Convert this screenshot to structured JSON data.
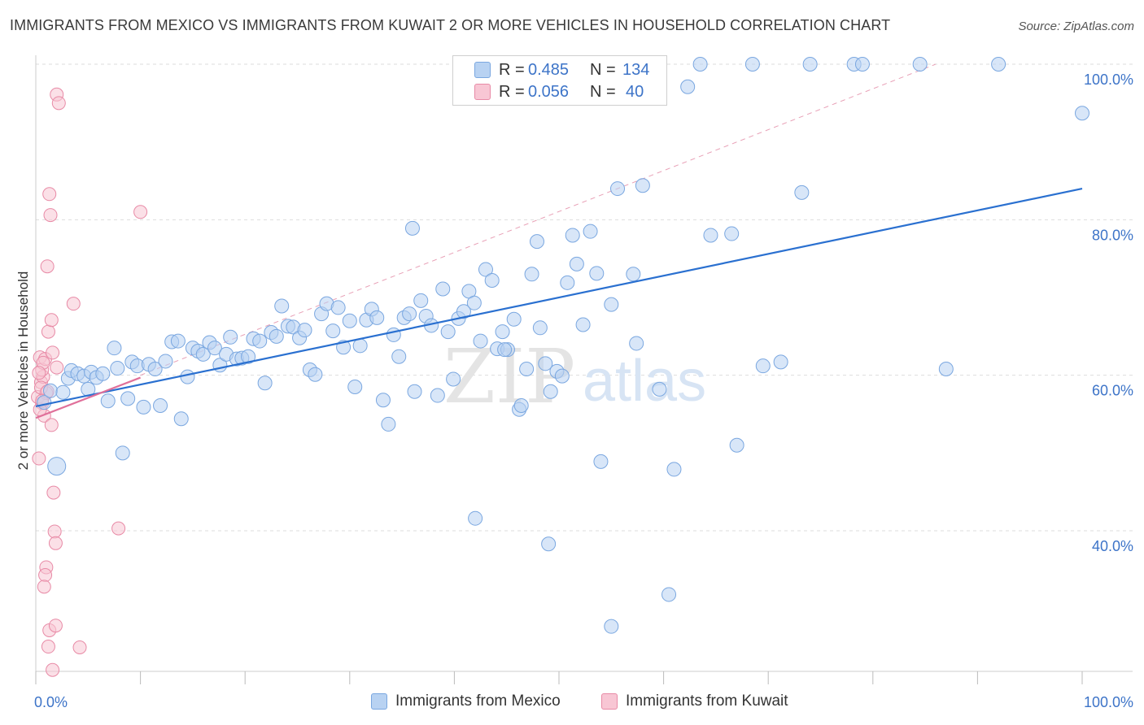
{
  "title": "IMMIGRANTS FROM MEXICO VS IMMIGRANTS FROM KUWAIT 2 OR MORE VEHICLES IN HOUSEHOLD CORRELATION CHART",
  "source": "Source: ZipAtlas.com",
  "watermark": {
    "zip": "ZIP",
    "atlas": "atlas"
  },
  "legend": {
    "r_label": "R =",
    "n_label": "N =",
    "mexico": {
      "r": "0.485",
      "n": "134"
    },
    "kuwait": {
      "r": "0.056",
      "n": "40"
    }
  },
  "colors": {
    "mexico_fill": "#b8d2f2",
    "mexico_stroke": "#7aa7e0",
    "mexico_line": "#2a70d0",
    "kuwait_fill": "#f8c6d4",
    "kuwait_stroke": "#e88aa6",
    "kuwait_line": "#e0709a",
    "axis_value": "#3d74c8",
    "grid": "#dddddd"
  },
  "chart_data": {
    "type": "scatter",
    "title": "IMMIGRANTS FROM MEXICO VS IMMIGRANTS FROM KUWAIT 2 OR MORE VEHICLES IN HOUSEHOLD CORRELATION CHART",
    "xlabel": "",
    "ylabel": "2 or more Vehicles in Household",
    "xlim": [
      0,
      100
    ],
    "ylim": [
      20,
      102
    ],
    "x_tick_labels": [
      "0.0%",
      "100.0%"
    ],
    "y_ticks": [
      40,
      60,
      80,
      100
    ],
    "y_tick_labels": [
      "40.0%",
      "60.0%",
      "80.0%",
      "100.0%"
    ],
    "grid": true,
    "legend_position": "bottom",
    "series": [
      {
        "name": "Immigrants from Mexico",
        "points": [
          [
            0.8,
            56.5
          ],
          [
            1.4,
            58.0
          ],
          [
            2.0,
            48.3
          ],
          [
            2.6,
            57.8
          ],
          [
            3.1,
            59.6
          ],
          [
            3.4,
            60.6
          ],
          [
            4.0,
            60.2
          ],
          [
            4.6,
            59.9
          ],
          [
            5.0,
            58.2
          ],
          [
            5.3,
            60.4
          ],
          [
            5.8,
            59.7
          ],
          [
            6.4,
            60.2
          ],
          [
            6.9,
            56.7
          ],
          [
            7.5,
            63.5
          ],
          [
            7.8,
            60.9
          ],
          [
            8.3,
            50.0
          ],
          [
            8.8,
            57.0
          ],
          [
            9.2,
            61.7
          ],
          [
            9.7,
            61.2
          ],
          [
            10.3,
            55.9
          ],
          [
            10.8,
            61.4
          ],
          [
            11.4,
            60.8
          ],
          [
            11.9,
            56.1
          ],
          [
            12.4,
            61.8
          ],
          [
            13.0,
            64.3
          ],
          [
            13.6,
            64.4
          ],
          [
            13.9,
            54.4
          ],
          [
            14.5,
            59.8
          ],
          [
            15.0,
            63.5
          ],
          [
            15.5,
            63.1
          ],
          [
            16.0,
            62.7
          ],
          [
            16.6,
            64.2
          ],
          [
            17.1,
            63.5
          ],
          [
            17.6,
            61.3
          ],
          [
            18.2,
            62.7
          ],
          [
            18.6,
            64.9
          ],
          [
            19.2,
            62.1
          ],
          [
            19.7,
            62.2
          ],
          [
            20.3,
            62.4
          ],
          [
            20.8,
            64.7
          ],
          [
            21.4,
            64.4
          ],
          [
            21.9,
            59.0
          ],
          [
            22.5,
            65.5
          ],
          [
            23.0,
            65.0
          ],
          [
            23.5,
            68.9
          ],
          [
            24.1,
            66.3
          ],
          [
            24.6,
            66.2
          ],
          [
            25.2,
            64.8
          ],
          [
            25.7,
            65.8
          ],
          [
            26.2,
            60.7
          ],
          [
            26.7,
            60.1
          ],
          [
            27.3,
            67.9
          ],
          [
            27.8,
            69.2
          ],
          [
            28.4,
            65.7
          ],
          [
            28.9,
            68.7
          ],
          [
            29.4,
            63.6
          ],
          [
            30.0,
            67.0
          ],
          [
            30.5,
            58.5
          ],
          [
            31.0,
            63.8
          ],
          [
            31.6,
            67.1
          ],
          [
            32.1,
            68.5
          ],
          [
            32.6,
            67.4
          ],
          [
            33.2,
            56.8
          ],
          [
            33.7,
            53.7
          ],
          [
            34.2,
            65.2
          ],
          [
            34.7,
            62.4
          ],
          [
            35.2,
            67.4
          ],
          [
            35.7,
            67.9
          ],
          [
            36.2,
            57.9
          ],
          [
            36.8,
            69.6
          ],
          [
            36.0,
            78.9
          ],
          [
            37.3,
            67.6
          ],
          [
            37.8,
            66.4
          ],
          [
            38.4,
            57.4
          ],
          [
            38.9,
            71.1
          ],
          [
            39.4,
            65.6
          ],
          [
            39.9,
            59.5
          ],
          [
            40.4,
            67.3
          ],
          [
            40.9,
            68.2
          ],
          [
            41.4,
            70.8
          ],
          [
            41.9,
            69.3
          ],
          [
            42.5,
            64.4
          ],
          [
            43.0,
            73.6
          ],
          [
            43.6,
            72.2
          ],
          [
            44.1,
            63.4
          ],
          [
            44.6,
            65.6
          ],
          [
            45.1,
            63.3
          ],
          [
            45.7,
            67.2
          ],
          [
            46.2,
            55.6
          ],
          [
            46.4,
            56.1
          ],
          [
            46.9,
            60.8
          ],
          [
            47.4,
            73.0
          ],
          [
            47.9,
            77.2
          ],
          [
            48.2,
            66.1
          ],
          [
            48.7,
            61.5
          ],
          [
            49.2,
            57.9
          ],
          [
            49.8,
            60.5
          ],
          [
            50.3,
            59.9
          ],
          [
            50.8,
            71.9
          ],
          [
            51.3,
            78.0
          ],
          [
            51.7,
            74.3
          ],
          [
            52.3,
            66.5
          ],
          [
            53.0,
            78.5
          ],
          [
            53.6,
            73.1
          ],
          [
            54.0,
            48.9
          ],
          [
            55.0,
            69.1
          ],
          [
            55.6,
            84.0
          ],
          [
            57.1,
            73.0
          ],
          [
            57.4,
            64.1
          ],
          [
            58.0,
            84.4
          ],
          [
            59.6,
            58.2
          ],
          [
            61.0,
            47.9
          ],
          [
            62.3,
            97.1
          ],
          [
            64.5,
            78.0
          ],
          [
            66.5,
            78.2
          ],
          [
            67.0,
            51.0
          ],
          [
            69.5,
            61.2
          ],
          [
            71.2,
            61.7
          ],
          [
            73.2,
            83.5
          ],
          [
            74.0,
            100.0
          ],
          [
            78.2,
            100.0
          ],
          [
            79.0,
            100.0
          ],
          [
            84.5,
            100.0
          ],
          [
            87.0,
            60.8
          ],
          [
            92.0,
            100.0
          ],
          [
            100.0,
            93.7
          ],
          [
            42.0,
            41.6
          ],
          [
            49.0,
            38.3
          ],
          [
            55.0,
            27.7
          ],
          [
            60.5,
            31.8
          ],
          [
            63.5,
            100.0
          ],
          [
            68.5,
            100.0
          ],
          [
            56.0,
            100.0
          ],
          [
            44.8,
            63.3
          ]
        ]
      },
      {
        "name": "Immigrants from Kuwait",
        "points": [
          [
            0.2,
            57.2
          ],
          [
            0.4,
            62.3
          ],
          [
            0.5,
            59.1
          ],
          [
            0.6,
            56.4
          ],
          [
            0.7,
            59.8
          ],
          [
            0.8,
            54.8
          ],
          [
            0.3,
            49.3
          ],
          [
            0.6,
            60.7
          ],
          [
            0.9,
            62.1
          ],
          [
            1.0,
            57.7
          ],
          [
            1.1,
            74.0
          ],
          [
            1.2,
            65.6
          ],
          [
            1.3,
            83.3
          ],
          [
            1.4,
            80.6
          ],
          [
            1.5,
            53.6
          ],
          [
            1.5,
            67.1
          ],
          [
            1.6,
            62.9
          ],
          [
            1.7,
            44.9
          ],
          [
            1.8,
            39.9
          ],
          [
            1.9,
            38.4
          ],
          [
            2.0,
            61.0
          ],
          [
            2.0,
            96.1
          ],
          [
            2.2,
            95.0
          ],
          [
            1.0,
            35.3
          ],
          [
            0.9,
            34.3
          ],
          [
            0.8,
            32.8
          ],
          [
            1.3,
            27.2
          ],
          [
            1.9,
            27.8
          ],
          [
            1.2,
            25.1
          ],
          [
            4.2,
            25.0
          ],
          [
            1.6,
            22.1
          ],
          [
            3.6,
            69.2
          ],
          [
            7.9,
            40.3
          ],
          [
            10.0,
            81.0
          ],
          [
            0.4,
            55.6
          ],
          [
            0.5,
            58.4
          ],
          [
            0.7,
            61.6
          ],
          [
            1.1,
            57.9
          ],
          [
            0.3,
            60.3
          ],
          [
            0.6,
            56.7
          ]
        ]
      }
    ],
    "trendlines": [
      {
        "series": "Immigrants from Mexico",
        "x0": 0,
        "y0": 56.0,
        "x1": 100,
        "y1": 84.0
      },
      {
        "series": "Immigrants from Kuwait",
        "x0": 0,
        "y0": 54.5,
        "x1": 10.0,
        "y1": 59.7
      }
    ]
  },
  "bottom_legend": {
    "mexico": "Immigrants from Mexico",
    "kuwait": "Immigrants from Kuwait"
  }
}
